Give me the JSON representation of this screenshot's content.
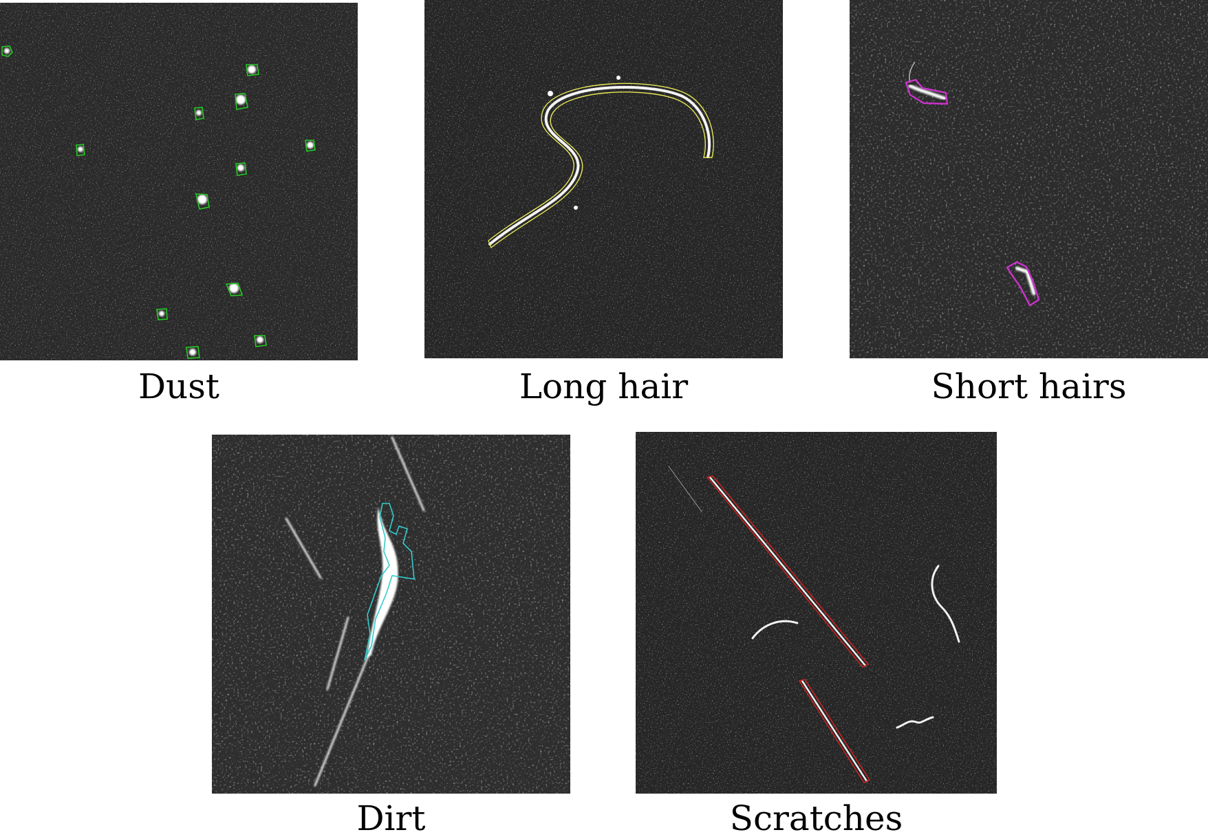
{
  "panels": [
    {
      "id": "dust",
      "caption": "Dust",
      "outline_color": "#22cc22"
    },
    {
      "id": "longhair",
      "caption": "Long hair",
      "outline_color": "#e8e85a"
    },
    {
      "id": "shorthair",
      "caption": "Short hairs",
      "outline_color": "#cc33cc"
    },
    {
      "id": "dirt",
      "caption": "Dirt",
      "outline_color": "#33cccc"
    },
    {
      "id": "scratch",
      "caption": "Scratches",
      "outline_color": "#cc2222"
    }
  ]
}
